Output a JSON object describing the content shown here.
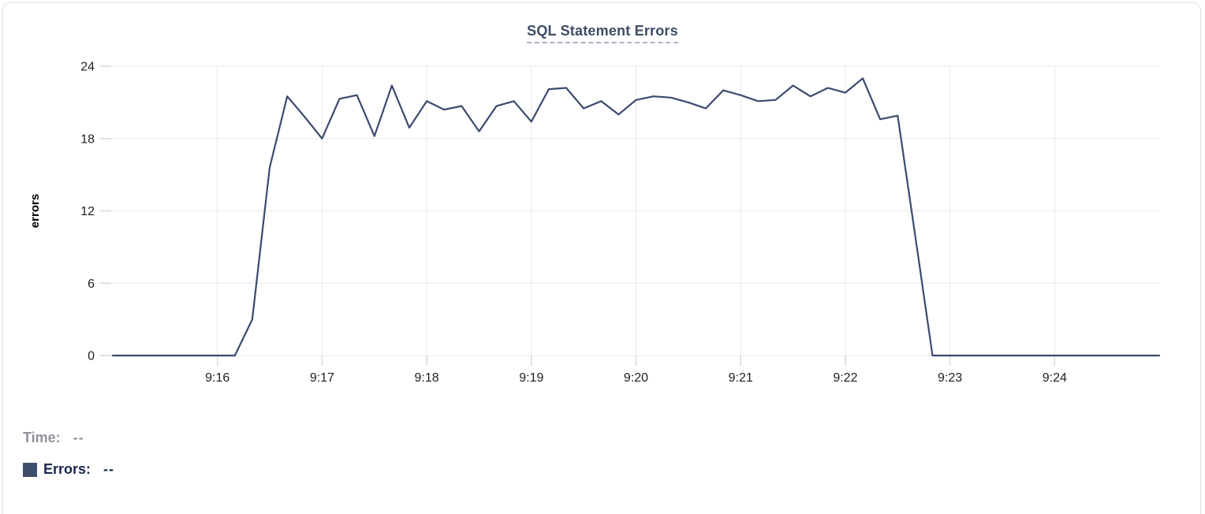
{
  "legend": {
    "time_label": "Time:",
    "time_value": "--",
    "errors_label": "Errors:",
    "errors_value": "--"
  },
  "colors": {
    "line": "#3b4a6e",
    "title": "#3d4b66",
    "title_underline": "#a9b4c6",
    "grid": "#e8e8e8",
    "tick": "#d9d9d9",
    "axis_text": "#1f1f1f",
    "axis_name": "#000000",
    "time_label": "#909399",
    "errors_label": "#19274d",
    "swatch": "#3f4e6c",
    "card_border": "#dcdfe3",
    "card_bg": "#ffffff"
  },
  "chart_data": {
    "type": "line",
    "title": "SQL Statement Errors",
    "xlabel": "",
    "ylabel": "errors",
    "ylim": [
      0,
      24
    ],
    "yticks": [
      0,
      6,
      12,
      18,
      24
    ],
    "x_ticks": [
      "9:16",
      "9:17",
      "9:18",
      "9:19",
      "9:20",
      "9:21",
      "9:22",
      "9:23",
      "9:24"
    ],
    "x_range": [
      "9:15:00",
      "9:25:00"
    ],
    "grid": true,
    "legend_position": "bottom-left",
    "x": [
      "9:15:00",
      "9:15:10",
      "9:15:20",
      "9:15:30",
      "9:15:40",
      "9:15:50",
      "9:16:00",
      "9:16:10",
      "9:16:20",
      "9:16:30",
      "9:16:40",
      "9:16:50",
      "9:17:00",
      "9:17:10",
      "9:17:20",
      "9:17:30",
      "9:17:40",
      "9:17:50",
      "9:18:00",
      "9:18:10",
      "9:18:20",
      "9:18:30",
      "9:18:40",
      "9:18:50",
      "9:19:00",
      "9:19:10",
      "9:19:20",
      "9:19:30",
      "9:19:40",
      "9:19:50",
      "9:20:00",
      "9:20:10",
      "9:20:20",
      "9:20:30",
      "9:20:40",
      "9:20:50",
      "9:21:00",
      "9:21:10",
      "9:21:20",
      "9:21:30",
      "9:21:40",
      "9:21:50",
      "9:22:00",
      "9:22:10",
      "9:22:20",
      "9:22:30",
      "9:22:40",
      "9:22:50",
      "9:23:00",
      "9:23:10",
      "9:23:20",
      "9:23:30",
      "9:23:40",
      "9:23:50",
      "9:24:00",
      "9:24:10",
      "9:24:20",
      "9:24:30",
      "9:24:40",
      "9:24:50",
      "9:25:00"
    ],
    "series": [
      {
        "name": "Errors",
        "color": "#3b4a6e",
        "values": [
          0,
          0,
          0,
          0,
          0,
          0,
          0,
          0,
          3,
          15.6,
          21.5,
          19.8,
          18,
          21.3,
          21.6,
          18.2,
          22.4,
          18.9,
          21.1,
          20.4,
          20.7,
          18.6,
          20.7,
          21.1,
          19.4,
          22.1,
          22.2,
          20.5,
          21.1,
          20,
          21.2,
          21.5,
          21.4,
          21,
          20.5,
          22,
          21.6,
          21.1,
          21.2,
          22.4,
          21.5,
          22.2,
          21.8,
          23,
          19.6,
          19.9,
          10,
          0,
          0,
          0,
          0,
          0,
          0,
          0,
          0,
          0,
          0,
          0,
          0,
          0,
          0
        ]
      }
    ]
  }
}
